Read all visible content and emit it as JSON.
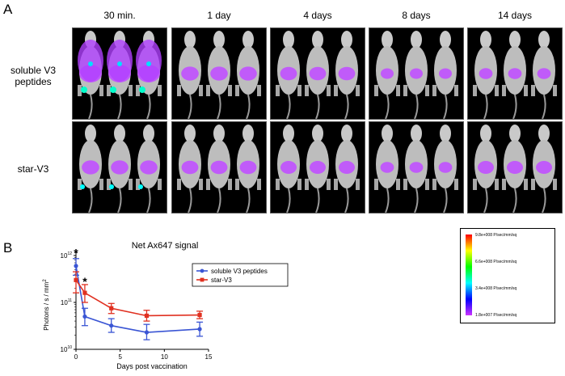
{
  "panel_a": {
    "letter": "A",
    "timepoints": [
      "30 min.",
      "1 day",
      "4 days",
      "8 days",
      "14 days"
    ],
    "groups": [
      {
        "label_line1": "soluble V3",
        "label_line2": "peptides"
      },
      {
        "label_line1": "star-V3",
        "label_line2": ""
      }
    ],
    "image_description_icon": "mouse-imaging-icon"
  },
  "colorbar": {
    "labels": [
      "9.8e+008 P/sec/mm/sq",
      "6.6e+008 P/sec/mm/sq",
      "3.4e+008 P/sec/mm/sq",
      "1.8e+007 P/sec/mm/sq"
    ],
    "colors": [
      "#ff0000",
      "#ffff00",
      "#00ff00",
      "#00ffff",
      "#0000ff",
      "#cc33ff"
    ]
  },
  "panel_b": {
    "letter": "B",
    "chart_data": {
      "type": "line",
      "title": "Net Ax647 signal",
      "xlabel": "Days post vaccination",
      "ylabel": "Photons / s / mm",
      "ylabel_superscript": "2",
      "yscale": "log",
      "xlim": [
        0,
        15
      ],
      "ylim": [
        10000000000.0,
        1000000000000.0
      ],
      "xticks": [
        0,
        5,
        10,
        15
      ],
      "yticks": [
        {
          "base": "10",
          "exp": "10",
          "value": 10000000000.0
        },
        {
          "base": "10",
          "exp": "11",
          "value": 100000000000.0
        },
        {
          "base": "10",
          "exp": "12",
          "value": 1000000000000.0
        }
      ],
      "legend_position": "top-right",
      "annotations": [
        {
          "text": "*",
          "x": 0,
          "y": 1100000000000.0
        },
        {
          "text": "*",
          "x": 1,
          "y": 270000000000.0
        }
      ],
      "vertical_dotted_line_x": 0,
      "series": [
        {
          "name": "soluble V3 peptides",
          "color": "#3a55d4",
          "marker": "circle",
          "x": [
            0,
            1,
            4,
            8,
            14
          ],
          "y": [
            600000000000.0,
            50000000000.0,
            32000000000.0,
            23000000000.0,
            27000000000.0
          ],
          "err_low": [
            380000000000.0,
            32000000000.0,
            23000000000.0,
            16000000000.0,
            19000000000.0
          ],
          "err_high": [
            860000000000.0,
            75000000000.0,
            45000000000.0,
            34000000000.0,
            38000000000.0
          ]
        },
        {
          "name": "star-V3",
          "color": "#e03020",
          "marker": "square",
          "x": [
            0,
            1,
            4,
            8,
            14
          ],
          "y": [
            300000000000.0,
            160000000000.0,
            75000000000.0,
            52000000000.0,
            54000000000.0
          ],
          "err_low": [
            160000000000.0,
            100000000000.0,
            58000000000.0,
            40000000000.0,
            45000000000.0
          ],
          "err_high": [
            450000000000.0,
            240000000000.0,
            95000000000.0,
            68000000000.0,
            65000000000.0
          ]
        }
      ]
    }
  }
}
